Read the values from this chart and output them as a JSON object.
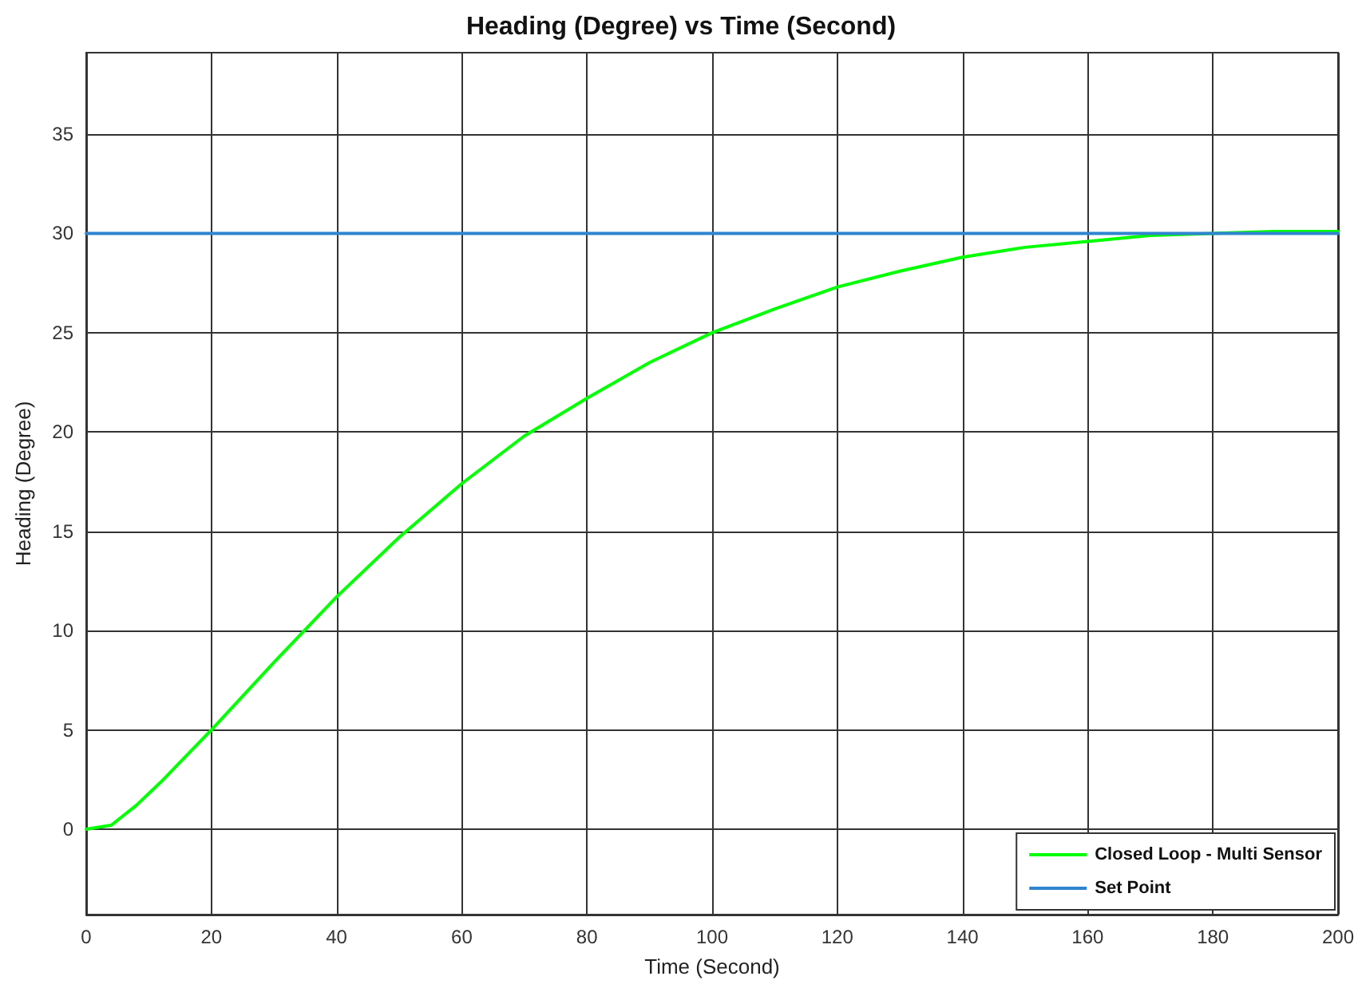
{
  "chart_data": {
    "type": "line",
    "title": "Heading (Degree) vs Time (Second)",
    "xlabel": "Time (Second)",
    "ylabel": "Heading (Degree)",
    "xlim": [
      0,
      200
    ],
    "xticks": [
      0,
      20,
      40,
      60,
      80,
      100,
      120,
      140,
      160,
      180,
      200
    ],
    "ylim": [
      -4.3,
      39.1
    ],
    "yticks": [
      0,
      5,
      10,
      15,
      20,
      25,
      30,
      35
    ],
    "grid": true,
    "legend": "bottom right",
    "marker": "none",
    "line_style": "solid",
    "series": [
      {
        "name": "Closed Loop - Multi Sensor",
        "color": "#00ff00",
        "x": [
          0,
          4,
          8,
          12,
          16,
          20,
          30,
          40,
          50,
          60,
          70,
          80,
          90,
          100,
          110,
          120,
          130,
          140,
          150,
          160,
          170,
          180,
          190,
          200
        ],
        "values": [
          0,
          0.2,
          1.2,
          2.4,
          3.7,
          5,
          8.4,
          11.7,
          14.7,
          17.4,
          19.8,
          21.7,
          23.5,
          25,
          26.2,
          27.3,
          28.1,
          28.8,
          29.3,
          29.6,
          29.9,
          30,
          30.1,
          30.1
        ]
      },
      {
        "name": "Set Point",
        "color": "#2f85d0",
        "x": [
          0,
          200
        ],
        "values": [
          30,
          30
        ]
      }
    ]
  }
}
